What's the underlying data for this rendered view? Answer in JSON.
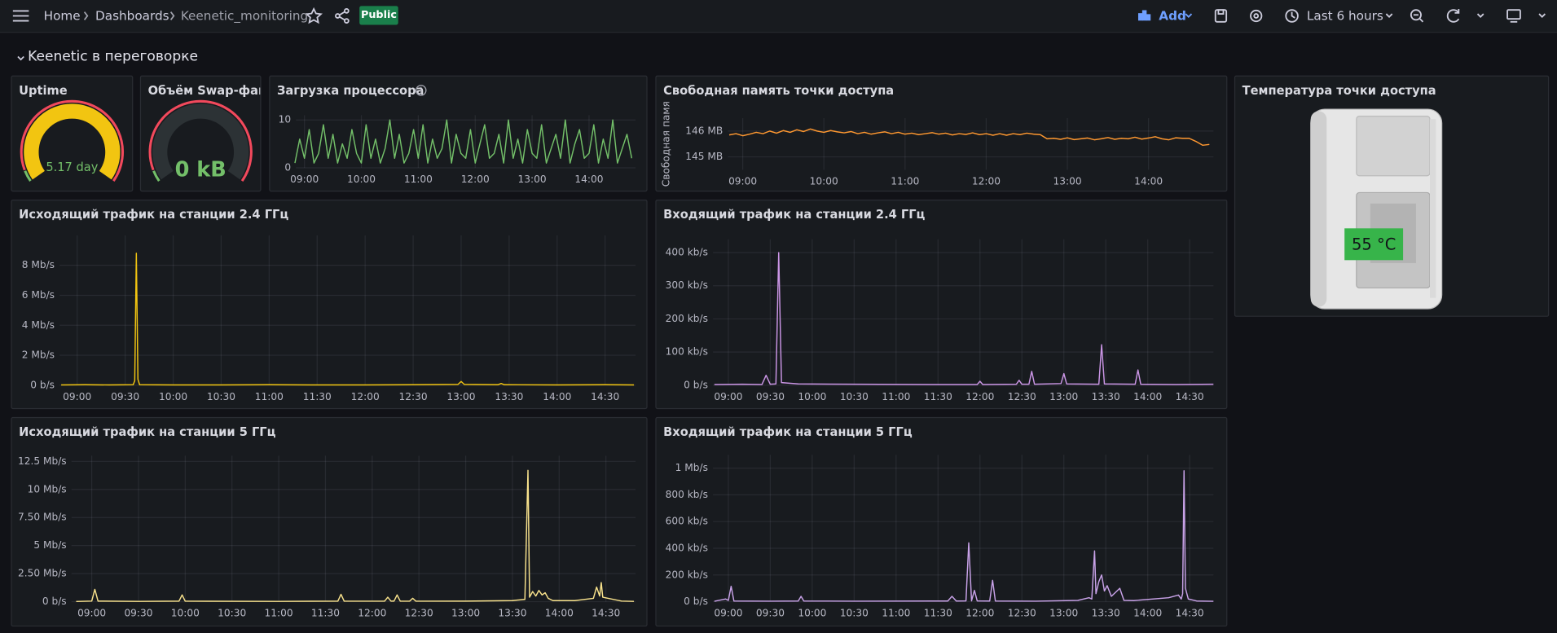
{
  "header": {
    "breadcrumbs": [
      "Home",
      "Dashboards",
      "Keenetic_monitoring"
    ],
    "badge": "Public",
    "add": "Add",
    "time_range": "Last 6 hours"
  },
  "row_title": "Keenetic в переговорке",
  "chart_data": [
    {
      "type": "gauge",
      "title": "Uptime",
      "value": 5.17,
      "value_label": "5.17 day",
      "color": "#f2c511"
    },
    {
      "type": "gauge",
      "title": "Объём Swap-фай",
      "value": 0,
      "value_label": "0 kB",
      "color": "#2c3235"
    },
    {
      "type": "line",
      "title": "Загрузка процессора",
      "color": "#73bf69",
      "x": [
        "08:50",
        "08:55",
        "09:00",
        "09:05",
        "09:10",
        "09:15",
        "09:20",
        "09:25",
        "09:30",
        "09:35",
        "09:40",
        "09:45",
        "09:50",
        "09:55",
        "10:00",
        "10:05",
        "10:10",
        "10:15",
        "10:20",
        "10:25",
        "10:30",
        "10:35",
        "10:40",
        "10:45",
        "10:50",
        "10:55",
        "11:00",
        "11:05",
        "11:10",
        "11:15",
        "11:20",
        "11:25",
        "11:30",
        "11:35",
        "11:40",
        "11:45",
        "11:50",
        "11:55",
        "12:00",
        "12:05",
        "12:10",
        "12:15",
        "12:20",
        "12:25",
        "12:30",
        "12:35",
        "12:40",
        "12:45",
        "12:50",
        "12:55",
        "13:00",
        "13:05",
        "13:10",
        "13:15",
        "13:20",
        "13:25",
        "13:30",
        "13:35",
        "13:40",
        "13:45",
        "13:50",
        "13:55",
        "14:00",
        "14:05",
        "14:10",
        "14:15",
        "14:20",
        "14:25",
        "14:30",
        "14:35",
        "14:40",
        "14:45"
      ],
      "values": [
        1,
        6,
        2,
        8,
        1,
        3,
        9,
        2,
        7,
        1,
        5,
        2,
        8,
        3,
        1,
        9,
        2,
        6,
        1,
        4,
        10,
        2,
        7,
        1,
        3,
        8,
        2,
        9,
        1,
        6,
        2,
        4,
        10,
        1,
        7,
        3,
        2,
        8,
        1,
        5,
        9,
        2,
        3,
        7,
        1,
        10,
        2,
        6,
        1,
        8,
        3,
        2,
        9,
        1,
        4,
        7,
        2,
        10,
        1,
        5,
        8,
        2,
        3,
        9,
        1,
        6,
        2,
        10,
        1,
        4,
        7,
        2
      ],
      "xlim": [
        "08:51",
        "14:49"
      ],
      "xticks": [
        "09:00",
        "10:00",
        "11:00",
        "12:00",
        "13:00",
        "14:00"
      ],
      "ylim": [
        0,
        11
      ],
      "yticks": [
        0,
        10
      ],
      "grid": true
    },
    {
      "type": "line",
      "title": "Свободная память точки доступа",
      "ylabel": "Свободная памя",
      "color": "#ff9830",
      "x": [
        "08:50",
        "08:55",
        "09:00",
        "09:05",
        "09:10",
        "09:15",
        "09:20",
        "09:25",
        "09:30",
        "09:35",
        "09:40",
        "09:45",
        "09:50",
        "09:55",
        "10:00",
        "10:05",
        "10:10",
        "10:15",
        "10:20",
        "10:25",
        "10:30",
        "10:35",
        "10:40",
        "10:45",
        "10:50",
        "10:55",
        "11:00",
        "11:05",
        "11:10",
        "11:15",
        "11:20",
        "11:25",
        "11:30",
        "11:35",
        "11:40",
        "11:45",
        "11:50",
        "11:55",
        "12:00",
        "12:05",
        "12:10",
        "12:15",
        "12:20",
        "12:25",
        "12:30",
        "12:35",
        "12:40",
        "12:45",
        "12:50",
        "12:55",
        "13:00",
        "13:05",
        "13:10",
        "13:15",
        "13:20",
        "13:25",
        "13:30",
        "13:35",
        "13:40",
        "13:45",
        "13:50",
        "13:55",
        "14:00",
        "14:05",
        "14:10",
        "14:15",
        "14:20",
        "14:25",
        "14:30",
        "14:35",
        "14:40",
        "14:45"
      ],
      "values": [
        145.85,
        145.9,
        145.82,
        145.88,
        145.95,
        145.9,
        146.0,
        145.92,
        146.02,
        145.95,
        146.05,
        145.98,
        146.08,
        146.0,
        145.95,
        146.02,
        145.97,
        145.93,
        145.98,
        145.9,
        145.95,
        145.88,
        145.93,
        145.97,
        145.9,
        145.95,
        145.88,
        145.92,
        145.86,
        145.9,
        145.94,
        145.88,
        145.92,
        145.85,
        145.9,
        145.87,
        145.93,
        145.86,
        145.9,
        145.84,
        145.9,
        145.84,
        145.9,
        145.86,
        145.92,
        145.88,
        145.86,
        145.7,
        145.72,
        145.68,
        145.74,
        145.67,
        145.7,
        145.73,
        145.66,
        145.7,
        145.75,
        145.68,
        145.72,
        145.7,
        145.76,
        145.69,
        145.73,
        145.78,
        145.7,
        145.66,
        145.74,
        145.72,
        145.72,
        145.6,
        145.45,
        145.48
      ],
      "xlim": [
        "08:49",
        "14:48"
      ],
      "xticks": [
        "09:00",
        "10:00",
        "11:00",
        "12:00",
        "13:00",
        "14:00"
      ],
      "ylim": [
        144.5,
        146.5
      ],
      "yticks": [
        {
          "value": 145,
          "label": "145 MB"
        },
        {
          "value": 146,
          "label": "146 MB"
        }
      ],
      "grid": true
    },
    {
      "type": "stat",
      "title": "Температура точки доступа",
      "value": 55,
      "value_label": "55 °C",
      "color": "#37b44a"
    },
    {
      "type": "line",
      "title": "Исходящий трафик на станции 2.4 ГГц",
      "color": "#f2c511",
      "x": [
        "08:50",
        "09:05",
        "09:20",
        "09:35",
        "09:36",
        "09:37",
        "09:38",
        "09:39",
        "10:00",
        "10:30",
        "11:00",
        "11:30",
        "12:00",
        "12:30",
        "12:58",
        "13:00",
        "13:02",
        "13:23",
        "13:25",
        "13:27",
        "14:00",
        "14:30",
        "14:48"
      ],
      "values": [
        0.02,
        0.03,
        0.02,
        0.03,
        0.3,
        8.8,
        0.4,
        0.03,
        0.02,
        0.02,
        0.03,
        0.02,
        0.02,
        0.03,
        0.05,
        0.25,
        0.05,
        0.03,
        0.12,
        0.03,
        0.02,
        0.03,
        0.02
      ],
      "xlim": [
        "08:49",
        "14:49"
      ],
      "xticks": [
        "09:00",
        "09:30",
        "10:00",
        "10:30",
        "11:00",
        "11:30",
        "12:00",
        "12:30",
        "13:00",
        "13:30",
        "14:00",
        "14:30"
      ],
      "ylim": [
        0,
        10
      ],
      "yticks": [
        {
          "value": 0,
          "label": "0 b/s"
        },
        {
          "value": 2,
          "label": "2 Mb/s"
        },
        {
          "value": 4,
          "label": "4 Mb/s"
        },
        {
          "value": 6,
          "label": "6 Mb/s"
        },
        {
          "value": 8,
          "label": "8 Mb/s"
        }
      ],
      "grid": true
    },
    {
      "type": "line",
      "title": "Входящий трафик на станции 2.4 ГГц",
      "color": "#ca95e5",
      "x": [
        "08:50",
        "09:10",
        "09:24",
        "09:27",
        "09:30",
        "09:34",
        "09:36",
        "09:38",
        "09:50",
        "10:30",
        "11:30",
        "11:58",
        "12:00",
        "12:02",
        "12:26",
        "12:28",
        "12:30",
        "12:35",
        "12:37",
        "12:39",
        "12:58",
        "13:00",
        "13:02",
        "13:25",
        "13:27",
        "13:29",
        "13:51",
        "13:53",
        "13:55",
        "14:20",
        "14:47"
      ],
      "values": [
        2,
        3,
        2,
        30,
        3,
        4,
        400,
        8,
        4,
        3,
        2,
        2,
        12,
        2,
        3,
        15,
        3,
        3,
        42,
        3,
        5,
        35,
        4,
        3,
        122,
        4,
        3,
        46,
        3,
        2,
        3
      ],
      "xlim": [
        "08:49",
        "14:47"
      ],
      "xticks": [
        "09:00",
        "09:30",
        "10:00",
        "10:30",
        "11:00",
        "11:30",
        "12:00",
        "12:30",
        "13:00",
        "13:30",
        "14:00",
        "14:30"
      ],
      "ylim": [
        0,
        440
      ],
      "yticks": [
        {
          "value": 0,
          "label": "0 b/s"
        },
        {
          "value": 100,
          "label": "100 kb/s"
        },
        {
          "value": 200,
          "label": "200 kb/s"
        },
        {
          "value": 300,
          "label": "300 kb/s"
        },
        {
          "value": 400,
          "label": "400 kb/s"
        }
      ],
      "grid": true
    },
    {
      "type": "line",
      "title": "Исходящий трафик на станции 5 ГГц",
      "color": "#f8e28c",
      "x": [
        "08:50",
        "09:00",
        "09:02",
        "09:04",
        "09:30",
        "09:56",
        "09:58",
        "10:00",
        "11:00",
        "11:38",
        "11:40",
        "11:42",
        "12:08",
        "12:10",
        "12:12",
        "12:14",
        "12:16",
        "12:18",
        "12:24",
        "12:26",
        "12:28",
        "13:00",
        "13:30",
        "13:38",
        "13:40",
        "13:41",
        "13:43",
        "13:45",
        "13:47",
        "13:49",
        "13:51",
        "13:53",
        "13:56",
        "14:10",
        "14:22",
        "14:24",
        "14:26",
        "14:27",
        "14:28",
        "14:40",
        "14:48"
      ],
      "values": [
        0.02,
        0.05,
        1.1,
        0.05,
        0.03,
        0.05,
        0.6,
        0.04,
        0.03,
        0.05,
        0.65,
        0.04,
        0.05,
        0.4,
        0.05,
        0.05,
        0.6,
        0.04,
        0.04,
        0.3,
        0.04,
        0.05,
        0.1,
        0.2,
        11.7,
        0.4,
        0.9,
        0.5,
        1.0,
        0.6,
        0.8,
        0.3,
        0.1,
        0.1,
        0.3,
        1.3,
        0.5,
        1.7,
        0.4,
        0.05,
        0.03
      ],
      "xlim": [
        "08:47",
        "14:49"
      ],
      "xticks": [
        "09:00",
        "09:30",
        "10:00",
        "10:30",
        "11:00",
        "11:30",
        "12:00",
        "12:30",
        "13:00",
        "13:30",
        "14:00",
        "14:30"
      ],
      "ylim": [
        0,
        13
      ],
      "yticks": [
        {
          "value": 0,
          "label": "0 b/s"
        },
        {
          "value": 2.5,
          "label": "2.50 Mb/s"
        },
        {
          "value": 5,
          "label": "5 Mb/s"
        },
        {
          "value": 7.5,
          "label": "7.50 Mb/s"
        },
        {
          "value": 10,
          "label": "10 Mb/s"
        },
        {
          "value": 12.5,
          "label": "12.5 Mb/s"
        }
      ],
      "grid": true
    },
    {
      "type": "line",
      "title": "Входящий трафик на станции 5 ГГц",
      "color": "#c8a2e8",
      "x": [
        "08:50",
        "08:58",
        "09:00",
        "09:02",
        "09:04",
        "09:30",
        "09:50",
        "09:52",
        "09:54",
        "10:30",
        "11:37",
        "11:40",
        "11:43",
        "11:50",
        "11:52",
        "11:54",
        "11:56",
        "11:58",
        "12:07",
        "12:09",
        "12:11",
        "12:40",
        "13:10",
        "13:18",
        "13:20",
        "13:22",
        "13:23",
        "13:25",
        "13:27",
        "13:29",
        "13:31",
        "13:34",
        "13:40",
        "13:43",
        "13:50",
        "14:15",
        "14:22",
        "14:24",
        "14:25",
        "14:26",
        "14:27",
        "14:29",
        "14:35",
        "14:47"
      ],
      "values": [
        3,
        20,
        10,
        115,
        5,
        4,
        5,
        40,
        5,
        4,
        5,
        40,
        5,
        6,
        440,
        6,
        85,
        6,
        5,
        160,
        5,
        4,
        10,
        30,
        20,
        380,
        60,
        150,
        200,
        80,
        120,
        40,
        100,
        10,
        8,
        30,
        50,
        20,
        60,
        980,
        100,
        20,
        5,
        3
      ],
      "xlim": [
        "08:49",
        "14:47"
      ],
      "xticks": [
        "09:00",
        "09:30",
        "10:00",
        "10:30",
        "11:00",
        "11:30",
        "12:00",
        "12:30",
        "13:00",
        "13:30",
        "14:00",
        "14:30"
      ],
      "ylim": [
        0,
        1100
      ],
      "yticks": [
        {
          "value": 0,
          "label": "0 b/s"
        },
        {
          "value": 200,
          "label": "200 kb/s"
        },
        {
          "value": 400,
          "label": "400 kb/s"
        },
        {
          "value": 600,
          "label": "600 kb/s"
        },
        {
          "value": 800,
          "label": "800 kb/s"
        },
        {
          "value": 1000,
          "label": "1 Mb/s"
        }
      ],
      "grid": true
    }
  ]
}
